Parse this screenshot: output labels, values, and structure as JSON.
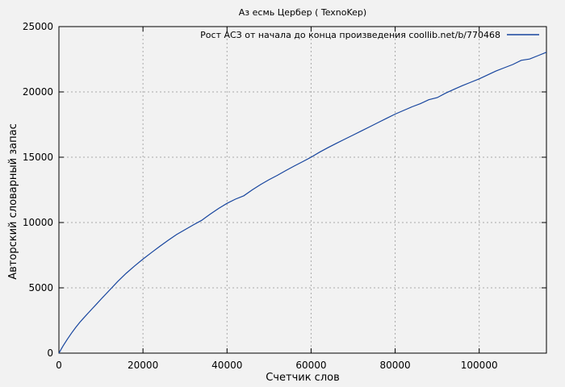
{
  "figure": {
    "background_color": "#f2f2f2",
    "frame_color": "#000000",
    "grid_color": "#a9a9a9"
  },
  "chart_data": {
    "type": "line",
    "title": "Аз есмь Цербер ( TexnoKep)",
    "xlabel": "Счетчик слов",
    "ylabel": "Авторский словарный запас",
    "xlim": [
      0,
      116000
    ],
    "ylim": [
      0,
      25000
    ],
    "x_ticks": [
      0,
      20000,
      40000,
      60000,
      80000,
      100000
    ],
    "y_ticks": [
      0,
      5000,
      10000,
      15000,
      20000,
      25000
    ],
    "grid": "dotted",
    "legend_position": "top-right-inside",
    "series": [
      {
        "name": "Рост АСЗ от начала до конца произведения coollib.net/b/770468",
        "color": "#17459e",
        "points": [
          [
            0,
            0
          ],
          [
            1000,
            560
          ],
          [
            2000,
            1060
          ],
          [
            3000,
            1530
          ],
          [
            4000,
            1970
          ],
          [
            5000,
            2370
          ],
          [
            6000,
            2730
          ],
          [
            7000,
            3080
          ],
          [
            8000,
            3430
          ],
          [
            9000,
            3780
          ],
          [
            10000,
            4130
          ],
          [
            12000,
            4810
          ],
          [
            14000,
            5490
          ],
          [
            16000,
            6110
          ],
          [
            18000,
            6670
          ],
          [
            20000,
            7200
          ],
          [
            22000,
            7700
          ],
          [
            24000,
            8180
          ],
          [
            26000,
            8640
          ],
          [
            28000,
            9080
          ],
          [
            30000,
            9450
          ],
          [
            32000,
            9820
          ],
          [
            34000,
            10170
          ],
          [
            36000,
            10640
          ],
          [
            38000,
            11080
          ],
          [
            40000,
            11470
          ],
          [
            42000,
            11790
          ],
          [
            44000,
            12050
          ],
          [
            46000,
            12500
          ],
          [
            48000,
            12910
          ],
          [
            50000,
            13280
          ],
          [
            52000,
            13620
          ],
          [
            54000,
            13980
          ],
          [
            56000,
            14330
          ],
          [
            58000,
            14660
          ],
          [
            60000,
            15000
          ],
          [
            62000,
            15380
          ],
          [
            64000,
            15730
          ],
          [
            66000,
            16060
          ],
          [
            68000,
            16380
          ],
          [
            70000,
            16700
          ],
          [
            72000,
            17020
          ],
          [
            74000,
            17340
          ],
          [
            76000,
            17660
          ],
          [
            78000,
            17980
          ],
          [
            80000,
            18300
          ],
          [
            82000,
            18580
          ],
          [
            84000,
            18860
          ],
          [
            86000,
            19100
          ],
          [
            88000,
            19400
          ],
          [
            90000,
            19560
          ],
          [
            92000,
            19900
          ],
          [
            94000,
            20200
          ],
          [
            96000,
            20480
          ],
          [
            98000,
            20740
          ],
          [
            100000,
            21000
          ],
          [
            102000,
            21300
          ],
          [
            104000,
            21600
          ],
          [
            106000,
            21850
          ],
          [
            108000,
            22100
          ],
          [
            110000,
            22420
          ],
          [
            112000,
            22520
          ],
          [
            114000,
            22780
          ],
          [
            116000,
            23040
          ]
        ]
      }
    ]
  }
}
